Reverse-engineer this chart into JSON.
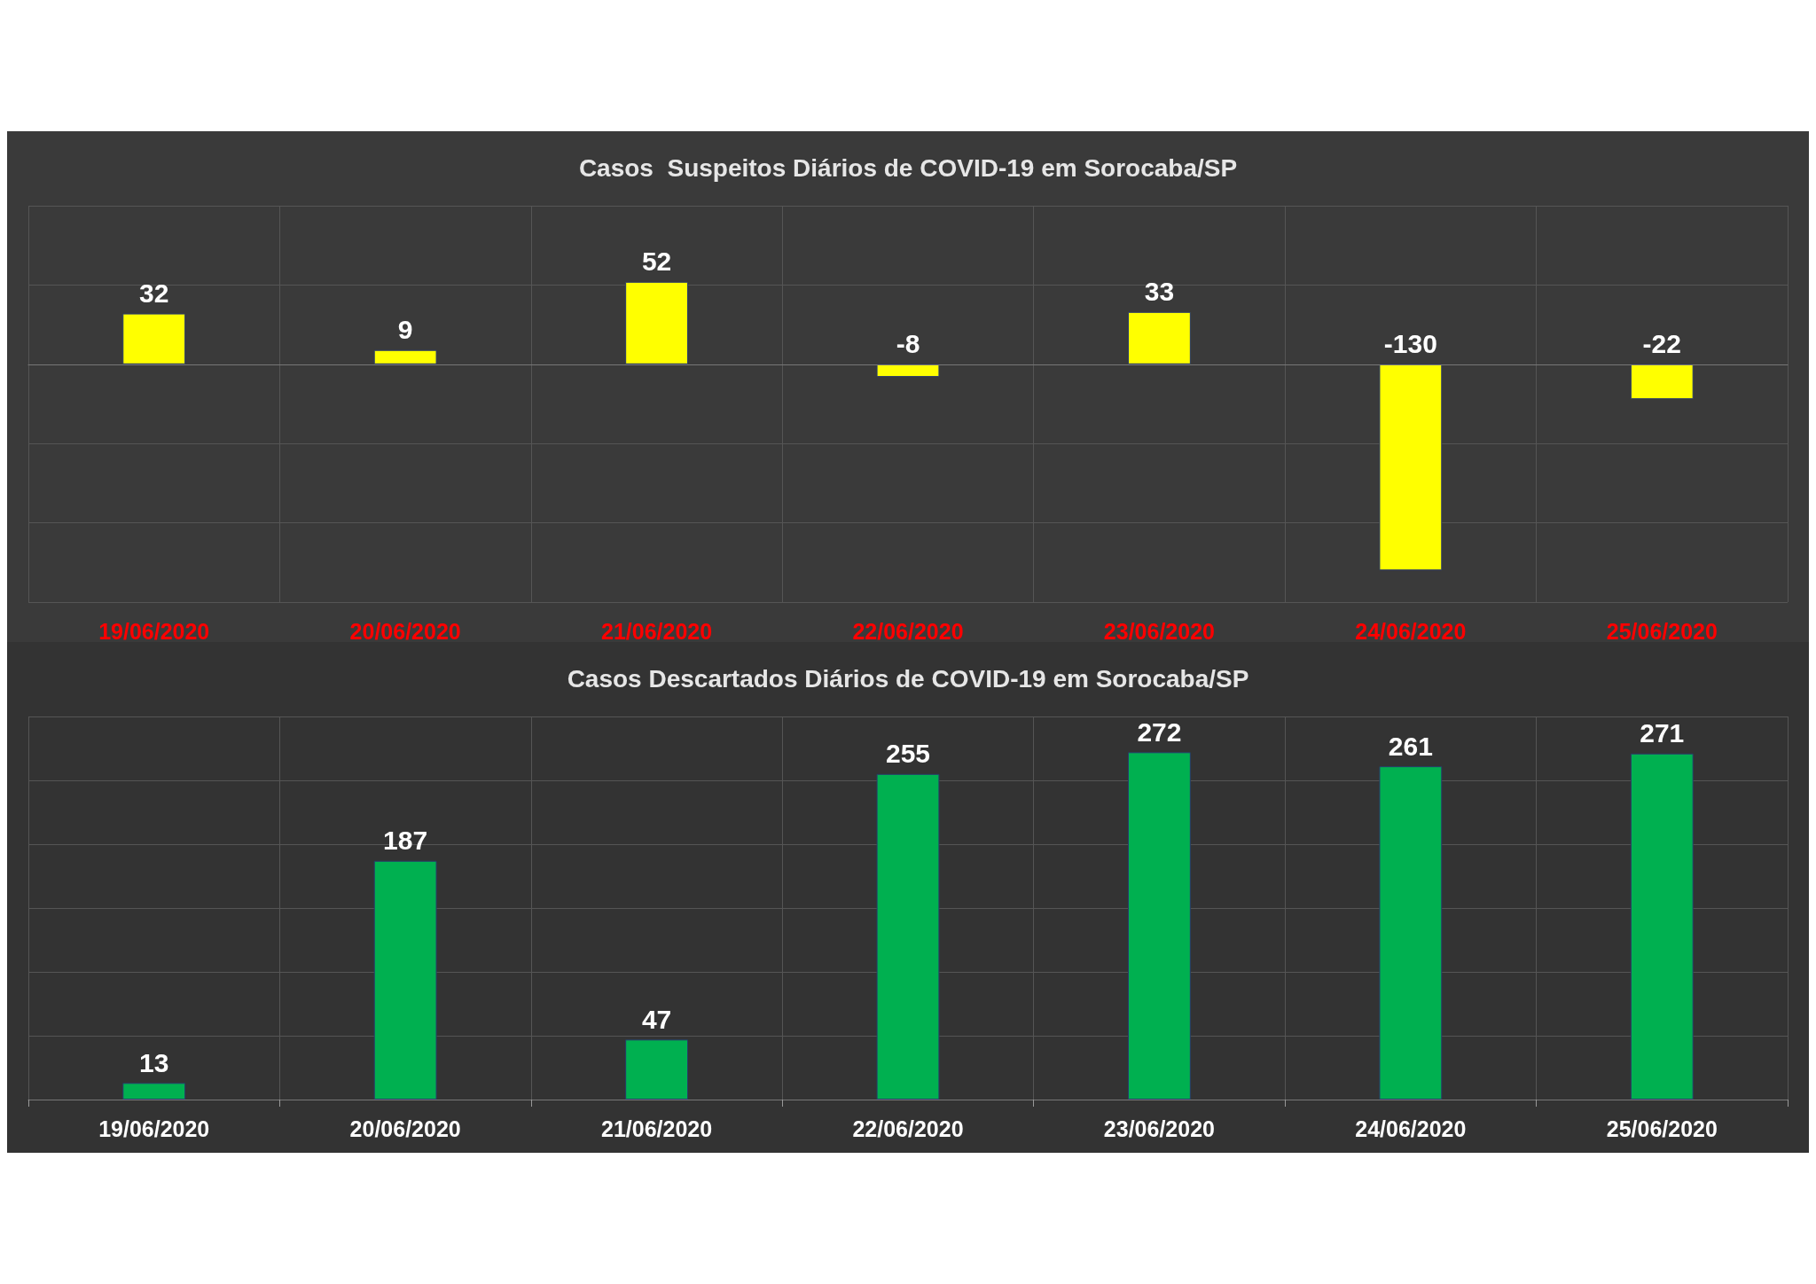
{
  "chart_data": [
    {
      "type": "bar",
      "title": "Casos  Suspeitos Diários de COVID-19 em Sorocaba/SP",
      "categories": [
        "19/06/2020",
        "20/06/2020",
        "21/06/2020",
        "22/06/2020",
        "23/06/2020",
        "24/06/2020",
        "25/06/2020"
      ],
      "values": [
        32,
        9,
        52,
        -8,
        33,
        -130,
        -22
      ],
      "color": "#ffff00",
      "ylim": [
        -150,
        100
      ],
      "grid": true,
      "data_labels": true,
      "tick_labels": "x"
    },
    {
      "type": "bar",
      "title": "Casos Descartados Diários de COVID-19 em Sorocaba/SP",
      "categories": [
        "19/06/2020",
        "20/06/2020",
        "21/06/2020",
        "22/06/2020",
        "23/06/2020",
        "24/06/2020",
        "25/06/2020"
      ],
      "values": [
        13,
        187,
        47,
        255,
        272,
        261,
        271
      ],
      "color": "#00b050",
      "ylim": [
        0,
        300
      ],
      "grid": true,
      "data_labels": true,
      "tick_labels": "x"
    }
  ]
}
